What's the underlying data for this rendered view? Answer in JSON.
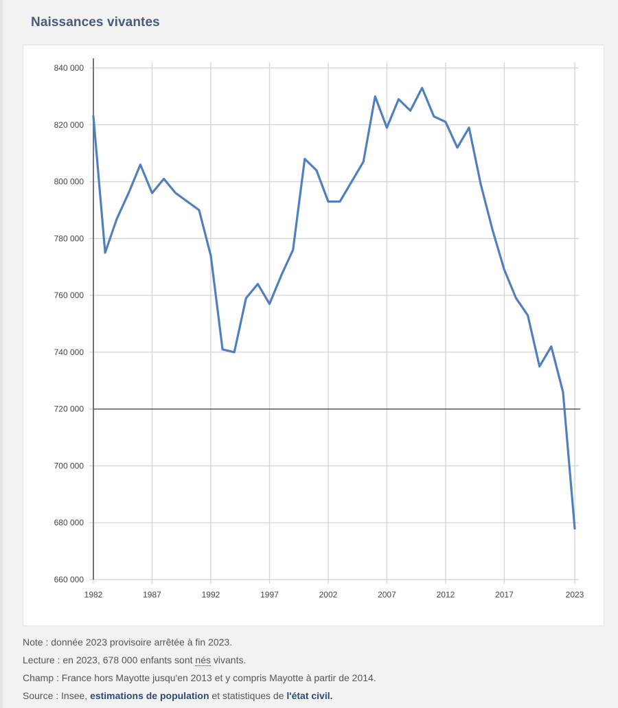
{
  "header": {
    "title": "Naissances vivantes"
  },
  "chart_data": {
    "type": "line",
    "title": "Naissances vivantes",
    "xlabel": "",
    "ylabel": "",
    "x": [
      1982,
      1983,
      1984,
      1985,
      1986,
      1987,
      1988,
      1989,
      1990,
      1991,
      1992,
      1993,
      1994,
      1995,
      1996,
      1997,
      1998,
      1999,
      2000,
      2001,
      2002,
      2003,
      2004,
      2005,
      2006,
      2007,
      2008,
      2009,
      2010,
      2011,
      2012,
      2013,
      2014,
      2015,
      2016,
      2017,
      2018,
      2019,
      2020,
      2021,
      2022,
      2023
    ],
    "series": [
      {
        "name": "Naissances vivantes",
        "color": "#4f7fbf",
        "values": [
          823000,
          775000,
          787000,
          796000,
          806000,
          796000,
          801000,
          796000,
          793000,
          790000,
          774000,
          741000,
          740000,
          759000,
          764000,
          757000,
          767000,
          776000,
          808000,
          804000,
          793000,
          793000,
          800000,
          807000,
          830000,
          819000,
          829000,
          825000,
          833000,
          823000,
          821000,
          812000,
          819000,
          799000,
          783000,
          769000,
          759000,
          753000,
          735000,
          742000,
          726000,
          678000
        ]
      }
    ],
    "xlim": [
      1982,
      2023
    ],
    "ylim": [
      660000,
      840000
    ],
    "x_ticks": [
      1982,
      1987,
      1992,
      1997,
      2002,
      2007,
      2012,
      2017,
      2023
    ],
    "x_tick_labels": [
      "1982",
      "1987",
      "1992",
      "1997",
      "2002",
      "2007",
      "2012",
      "2017",
      "2023"
    ],
    "y_ticks": [
      660000,
      680000,
      700000,
      720000,
      740000,
      760000,
      780000,
      800000,
      820000,
      840000
    ],
    "y_tick_labels": [
      "660 000",
      "680 000",
      "700 000",
      "720 000",
      "740 000",
      "760 000",
      "780 000",
      "800 000",
      "820 000",
      "840 000"
    ],
    "reference_line": 720000,
    "grid": true,
    "legend": "none"
  },
  "notes": {
    "note": "Note : donnée 2023 provisoire arrêtée à fin 2023.",
    "lecture_prefix": "Lecture : en 2023, 678 000 enfants sont ",
    "lecture_link": "nés",
    "lecture_suffix": " vivants.",
    "champ": "Champ : France hors Mayotte jusqu'en 2013 et y compris Mayotte à partir de 2014.",
    "source_prefix": "Source : Insee, ",
    "source_link1": "estimations de population",
    "source_middle": " et statistiques de ",
    "source_link2": "l'état civil."
  },
  "colors": {
    "line": "#4f7fbf",
    "axis": "#4a5370",
    "grid": "#d4d4d4",
    "title": "#4a5a78"
  }
}
